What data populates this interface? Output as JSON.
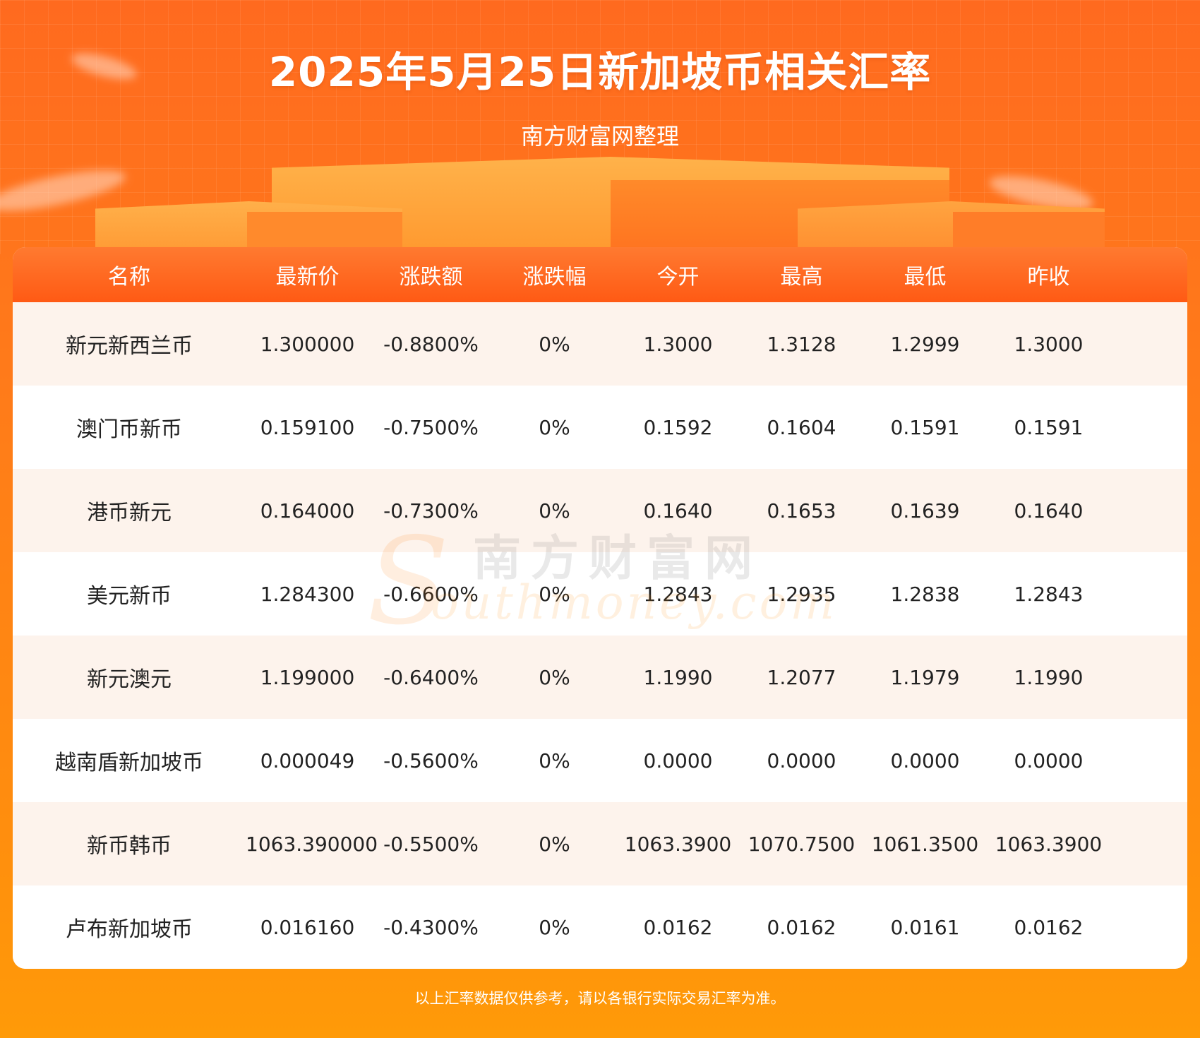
{
  "header": {
    "title": "2025年5月25日新加坡币相关汇率",
    "subtitle": "南方财富网整理"
  },
  "table": {
    "columns": [
      "名称",
      "最新价",
      "涨跌额",
      "涨跌幅",
      "今开",
      "最高",
      "最低",
      "昨收"
    ],
    "rows": [
      [
        "新元新西兰币",
        "1.300000",
        "-0.8800%",
        "0%",
        "1.3000",
        "1.3128",
        "1.2999",
        "1.3000"
      ],
      [
        "澳门币新币",
        "0.159100",
        "-0.7500%",
        "0%",
        "0.1592",
        "0.1604",
        "0.1591",
        "0.1591"
      ],
      [
        "港币新元",
        "0.164000",
        "-0.7300%",
        "0%",
        "0.1640",
        "0.1653",
        "0.1639",
        "0.1640"
      ],
      [
        "美元新币",
        "1.284300",
        "-0.6600%",
        "0%",
        "1.2843",
        "1.2935",
        "1.2838",
        "1.2843"
      ],
      [
        "新元澳元",
        "1.199000",
        "-0.6400%",
        "0%",
        "1.1990",
        "1.2077",
        "1.1979",
        "1.1990"
      ],
      [
        "越南盾新加坡币",
        "0.000049",
        "-0.5600%",
        "0%",
        "0.0000",
        "0.0000",
        "0.0000",
        "0.0000"
      ],
      [
        "新币韩币",
        "1063.390000",
        "-0.5500%",
        "0%",
        "1063.3900",
        "1070.7500",
        "1061.3500",
        "1063.3900"
      ],
      [
        "卢布新加坡币",
        "0.016160",
        "-0.4300%",
        "0%",
        "0.0162",
        "0.0162",
        "0.0161",
        "0.0162"
      ]
    ]
  },
  "watermark": {
    "letter": "S",
    "cn": "南方财富网",
    "en": "outhmoney.com"
  },
  "footer": {
    "note": "以上汇率数据仅供参考，请以各银行实际交易汇率为准。"
  },
  "colors": {
    "accent": "#ff6a1f",
    "header_row": "#ff5a14",
    "row_alt": "#fdf3ec"
  }
}
